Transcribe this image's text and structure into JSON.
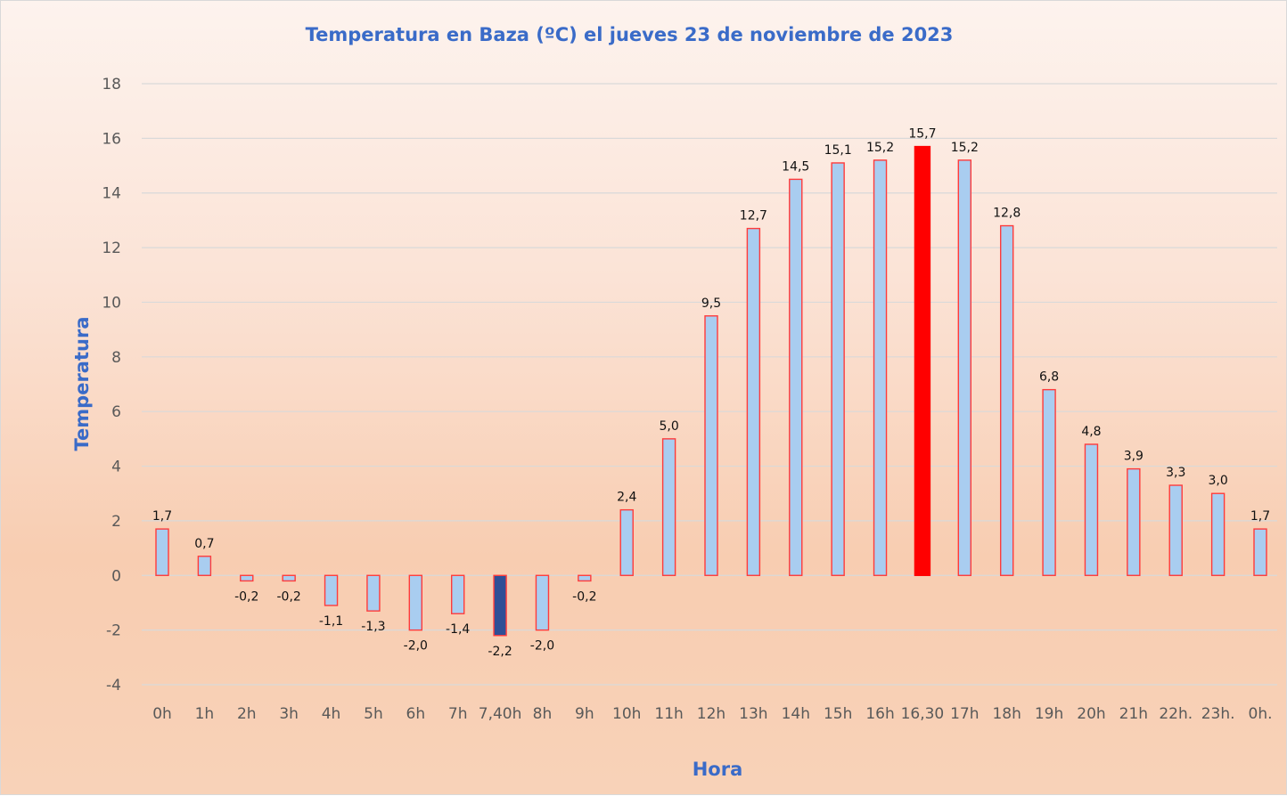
{
  "chart_data": {
    "type": "bar",
    "title": "Temperatura en Baza (ºC) el jueves 23 de noviembre de 2023",
    "xlabel": "Hora",
    "ylabel": "Temperatura",
    "ylim": [
      -4,
      18
    ],
    "yticks": [
      18,
      16,
      14,
      12,
      10,
      8,
      6,
      4,
      2,
      0,
      -2,
      -4
    ],
    "grid": true,
    "legend": "none",
    "categories": [
      "0h",
      "1h",
      "2h",
      "3h",
      "4h",
      "5h",
      "6h",
      "7h",
      "7,40h",
      "8h",
      "9h",
      "10h",
      "11h",
      "12h",
      "13h",
      "14h",
      "15h",
      "16h",
      "16,30",
      "17h",
      "18h",
      "19h",
      "20h",
      "21h",
      "22h.",
      "23h.",
      "0h."
    ],
    "values": [
      1.7,
      0.7,
      -0.2,
      -0.2,
      -1.1,
      -1.3,
      -2.0,
      -1.4,
      -2.2,
      -2.0,
      -0.2,
      2.4,
      5.0,
      9.5,
      12.7,
      14.5,
      15.1,
      15.2,
      15.7,
      15.2,
      12.8,
      6.8,
      4.8,
      3.9,
      3.3,
      3.0,
      1.7
    ],
    "data_labels": [
      "1,7",
      "0,7",
      "-0,2",
      "-0,2",
      "-1,1",
      "-1,3",
      "-2,0",
      "-1,4",
      "-2,2",
      "-2,0",
      "-0,2",
      "2,4",
      "5,0",
      "9,5",
      "12,7",
      "14,5",
      "15,1",
      "15,2",
      "15,7",
      "15,2",
      "12,8",
      "6,8",
      "4,8",
      "3,9",
      "3,3",
      "3,0",
      "1,7"
    ],
    "highlights": {
      "minimum": {
        "category": "7,40h",
        "value": -2.2,
        "color": "#2f4f96"
      },
      "maximum": {
        "category": "16,30",
        "value": 15.7,
        "color": "#ff0000"
      }
    },
    "colors": {
      "bar_fill": "#a9cdf0",
      "bar_border": "#ff3b3b",
      "title": "#3a6bc8"
    }
  }
}
